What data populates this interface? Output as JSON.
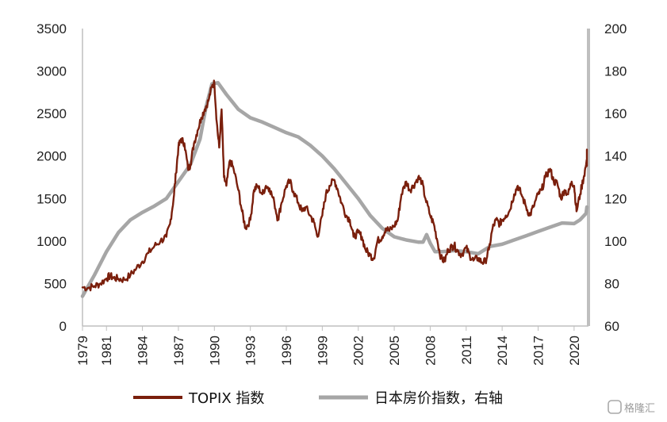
{
  "chart_data": {
    "type": "line",
    "title": "",
    "xlabel": "",
    "ylabel": "",
    "x_range": [
      1979,
      2021.2
    ],
    "x_ticks": [
      "1979",
      "1981",
      "1984",
      "1987",
      "1990",
      "1993",
      "1996",
      "1999",
      "2002",
      "2005",
      "2008",
      "2011",
      "2014",
      "2017",
      "2020"
    ],
    "y_left": {
      "range": [
        0,
        3500
      ],
      "ticks": [
        "0",
        "500",
        "1000",
        "1500",
        "2000",
        "2500",
        "3000",
        "3500"
      ]
    },
    "y_right": {
      "range": [
        60,
        200
      ],
      "ticks": [
        "60",
        "80",
        "100",
        "120",
        "140",
        "160",
        "180",
        "200"
      ]
    },
    "grid": false,
    "legend_position": "bottom",
    "series": [
      {
        "name": "TOPIX 指数",
        "axis": "left",
        "color": "#7a1f0c",
        "points": [
          [
            1979.0,
            455
          ],
          [
            1979.5,
            450
          ],
          [
            1980.0,
            470
          ],
          [
            1980.5,
            500
          ],
          [
            1981.0,
            560
          ],
          [
            1981.3,
            590
          ],
          [
            1981.6,
            565
          ],
          [
            1982.0,
            555
          ],
          [
            1982.5,
            545
          ],
          [
            1983.0,
            600
          ],
          [
            1983.5,
            680
          ],
          [
            1984.0,
            760
          ],
          [
            1984.5,
            860
          ],
          [
            1985.0,
            940
          ],
          [
            1985.5,
            1000
          ],
          [
            1986.0,
            1050
          ],
          [
            1986.3,
            1200
          ],
          [
            1986.6,
            1500
          ],
          [
            1986.8,
            1800
          ],
          [
            1987.0,
            2100
          ],
          [
            1987.2,
            2200
          ],
          [
            1987.5,
            2150
          ],
          [
            1987.8,
            1850
          ],
          [
            1988.0,
            1900
          ],
          [
            1988.3,
            2150
          ],
          [
            1988.6,
            2300
          ],
          [
            1988.9,
            2450
          ],
          [
            1989.2,
            2550
          ],
          [
            1989.5,
            2650
          ],
          [
            1989.8,
            2820
          ],
          [
            1990.0,
            2860
          ],
          [
            1990.2,
            2400
          ],
          [
            1990.4,
            2100
          ],
          [
            1990.6,
            2550
          ],
          [
            1990.8,
            1750
          ],
          [
            1991.0,
            1650
          ],
          [
            1991.3,
            1950
          ],
          [
            1991.6,
            1850
          ],
          [
            1992.0,
            1600
          ],
          [
            1992.3,
            1350
          ],
          [
            1992.6,
            1150
          ],
          [
            1993.0,
            1250
          ],
          [
            1993.3,
            1600
          ],
          [
            1993.6,
            1650
          ],
          [
            1994.0,
            1550
          ],
          [
            1994.3,
            1650
          ],
          [
            1994.6,
            1620
          ],
          [
            1995.0,
            1450
          ],
          [
            1995.3,
            1250
          ],
          [
            1995.6,
            1450
          ],
          [
            1996.0,
            1650
          ],
          [
            1996.3,
            1700
          ],
          [
            1996.6,
            1580
          ],
          [
            1997.0,
            1450
          ],
          [
            1997.3,
            1350
          ],
          [
            1997.6,
            1400
          ],
          [
            1998.0,
            1300
          ],
          [
            1998.3,
            1220
          ],
          [
            1998.6,
            1050
          ],
          [
            1999.0,
            1300
          ],
          [
            1999.3,
            1550
          ],
          [
            1999.6,
            1650
          ],
          [
            2000.0,
            1720
          ],
          [
            2000.3,
            1600
          ],
          [
            2000.6,
            1450
          ],
          [
            2001.0,
            1300
          ],
          [
            2001.3,
            1250
          ],
          [
            2001.6,
            1050
          ],
          [
            2002.0,
            1100
          ],
          [
            2002.3,
            1050
          ],
          [
            2002.6,
            900
          ],
          [
            2003.0,
            830
          ],
          [
            2003.3,
            800
          ],
          [
            2003.6,
            1000
          ],
          [
            2004.0,
            1050
          ],
          [
            2004.3,
            1150
          ],
          [
            2004.6,
            1120
          ],
          [
            2005.0,
            1180
          ],
          [
            2005.3,
            1250
          ],
          [
            2005.6,
            1550
          ],
          [
            2006.0,
            1700
          ],
          [
            2006.3,
            1600
          ],
          [
            2006.6,
            1650
          ],
          [
            2007.0,
            1750
          ],
          [
            2007.3,
            1700
          ],
          [
            2007.6,
            1500
          ],
          [
            2008.0,
            1300
          ],
          [
            2008.3,
            1200
          ],
          [
            2008.6,
            1000
          ],
          [
            2008.9,
            800
          ],
          [
            2009.2,
            760
          ],
          [
            2009.5,
            900
          ],
          [
            2009.8,
            930
          ],
          [
            2010.0,
            950
          ],
          [
            2010.3,
            880
          ],
          [
            2010.6,
            840
          ],
          [
            2011.0,
            920
          ],
          [
            2011.3,
            830
          ],
          [
            2011.6,
            770
          ],
          [
            2012.0,
            800
          ],
          [
            2012.3,
            750
          ],
          [
            2012.6,
            760
          ],
          [
            2012.9,
            900
          ],
          [
            2013.2,
            1150
          ],
          [
            2013.5,
            1250
          ],
          [
            2013.8,
            1200
          ],
          [
            2014.0,
            1250
          ],
          [
            2014.3,
            1300
          ],
          [
            2014.6,
            1350
          ],
          [
            2015.0,
            1550
          ],
          [
            2015.3,
            1650
          ],
          [
            2015.6,
            1550
          ],
          [
            2016.0,
            1400
          ],
          [
            2016.3,
            1300
          ],
          [
            2016.6,
            1400
          ],
          [
            2017.0,
            1550
          ],
          [
            2017.3,
            1600
          ],
          [
            2017.6,
            1750
          ],
          [
            2018.0,
            1850
          ],
          [
            2018.3,
            1700
          ],
          [
            2018.6,
            1680
          ],
          [
            2018.9,
            1500
          ],
          [
            2019.2,
            1600
          ],
          [
            2019.5,
            1550
          ],
          [
            2019.8,
            1700
          ],
          [
            2020.0,
            1650
          ],
          [
            2020.2,
            1350
          ],
          [
            2020.5,
            1550
          ],
          [
            2020.8,
            1750
          ],
          [
            2021.0,
            1900
          ],
          [
            2021.3,
            2000
          ],
          [
            2021.6,
            1950
          ],
          [
            2021.9,
            2050
          ],
          [
            2022.2,
            1900
          ]
        ]
      },
      {
        "name": "日本房价指数，右轴",
        "axis": "right",
        "color": "#a6a6a6",
        "points": [
          [
            1979.0,
            74
          ],
          [
            1980.0,
            84
          ],
          [
            1981.0,
            95
          ],
          [
            1982.0,
            104
          ],
          [
            1983.0,
            110
          ],
          [
            1984.0,
            113.5
          ],
          [
            1985.0,
            116.5
          ],
          [
            1986.0,
            120
          ],
          [
            1987.0,
            128
          ],
          [
            1988.0,
            136
          ],
          [
            1988.8,
            148
          ],
          [
            1989.3,
            163
          ],
          [
            1989.8,
            174
          ],
          [
            1990.3,
            174.5
          ],
          [
            1991.0,
            169
          ],
          [
            1992.0,
            162
          ],
          [
            1993.0,
            158
          ],
          [
            1994.0,
            156
          ],
          [
            1995.0,
            153.5
          ],
          [
            1996.0,
            151
          ],
          [
            1997.0,
            149
          ],
          [
            1998.0,
            145
          ],
          [
            1999.0,
            140
          ],
          [
            2000.0,
            134
          ],
          [
            2001.0,
            127
          ],
          [
            2002.0,
            120
          ],
          [
            2003.0,
            112
          ],
          [
            2004.0,
            106
          ],
          [
            2005.0,
            102
          ],
          [
            2006.0,
            100.5
          ],
          [
            2007.0,
            99.5
          ],
          [
            2007.4,
            99.5
          ],
          [
            2007.7,
            103
          ],
          [
            2008.0,
            99
          ],
          [
            2008.4,
            95
          ],
          [
            2009.0,
            95
          ],
          [
            2010.0,
            95.5
          ],
          [
            2011.0,
            95
          ],
          [
            2012.0,
            94
          ],
          [
            2013.0,
            97.5
          ],
          [
            2014.0,
            98.5
          ],
          [
            2015.0,
            100.5
          ],
          [
            2016.0,
            102.5
          ],
          [
            2017.0,
            104.5
          ],
          [
            2018.0,
            106.5
          ],
          [
            2019.0,
            108.5
          ],
          [
            2020.0,
            108.2
          ],
          [
            2020.5,
            110
          ],
          [
            2021.0,
            113
          ],
          [
            2021.3,
            116
          ]
        ]
      }
    ]
  },
  "watermark": "格隆汇"
}
